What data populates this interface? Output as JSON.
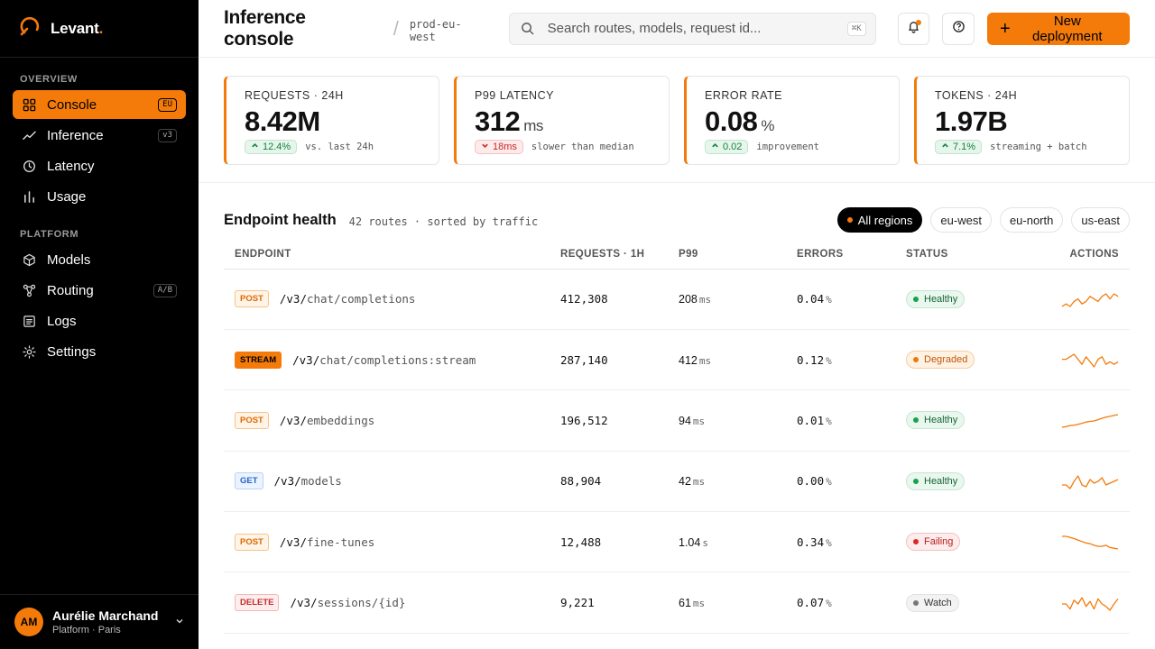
{
  "brand": {
    "name": "Levant",
    "dot": "."
  },
  "sidebar": {
    "sections": [
      {
        "title": "OVERVIEW"
      },
      {
        "title": "PLATFORM"
      }
    ],
    "overview": [
      {
        "label": "Console",
        "tag": "EU",
        "icon": "grid-icon",
        "active": true
      },
      {
        "label": "Inference",
        "tag": "v3",
        "icon": "trend-icon"
      },
      {
        "label": "Latency",
        "tag": "",
        "icon": "clock-icon"
      },
      {
        "label": "Usage",
        "tag": "",
        "icon": "bars-icon"
      }
    ],
    "platform": [
      {
        "label": "Models",
        "tag": "",
        "icon": "cube-icon"
      },
      {
        "label": "Routing",
        "tag": "A/B",
        "icon": "routing-icon"
      },
      {
        "label": "Logs",
        "tag": "",
        "icon": "logs-icon"
      },
      {
        "label": "Settings",
        "tag": "",
        "icon": "gear-icon"
      }
    ]
  },
  "user": {
    "initials": "AM",
    "name": "Aurélie Marchand",
    "role": "Platform · Paris"
  },
  "header": {
    "title": "Inference console",
    "separator": "/",
    "env": "prod-eu-west",
    "search_placeholder": "Search routes, models, request id...",
    "shortcut": "⌘K",
    "new_button": "New deployment"
  },
  "stats": [
    {
      "label": "REQUESTS · 24H",
      "value": "8.42M",
      "unit": "",
      "delta": "12.4%",
      "direction": "up",
      "tone": "good",
      "note": "vs. last 24h"
    },
    {
      "label": "P99 LATENCY",
      "value": "312",
      "unit": "ms",
      "delta": "18ms",
      "direction": "down",
      "tone": "bad",
      "note": "slower than median"
    },
    {
      "label": "ERROR RATE",
      "value": "0.08",
      "unit": "%",
      "delta": "0.02",
      "direction": "up",
      "tone": "good",
      "note": "improvement"
    },
    {
      "label": "TOKENS · 24H",
      "value": "1.97B",
      "unit": "",
      "delta": "7.1%",
      "direction": "up",
      "tone": "good",
      "note": "streaming + batch"
    }
  ],
  "endpoints": {
    "title": "Endpoint health",
    "subtitle": "42 routes · sorted by traffic",
    "filters": [
      "All regions",
      "eu-west",
      "eu-north",
      "us-east"
    ],
    "active_filter": 0,
    "columns": [
      "ENDPOINT",
      "REQUESTS · 1H",
      "P99",
      "ERRORS",
      "STATUS",
      "ACTIONS"
    ],
    "rows": [
      {
        "method": "POST",
        "base": "/v3/",
        "path": "chat/completions",
        "requests": "412,308",
        "p99": "208",
        "p99_unit": "ms",
        "errors": "0.04",
        "errors_unit": "%",
        "status": "Healthy",
        "spark": [
          5,
          6,
          5,
          7,
          8,
          6,
          7,
          9,
          8,
          7,
          9,
          10,
          8,
          10,
          9
        ]
      },
      {
        "method": "STREAM",
        "base": "/v3/",
        "path": "chat/completions:stream",
        "requests": "287,140",
        "p99": "412",
        "p99_unit": "ms",
        "errors": "0.12",
        "errors_unit": "%",
        "status": "Degraded",
        "spark": [
          6,
          6,
          7,
          8,
          6,
          4,
          7,
          5,
          3,
          6,
          7,
          4,
          5,
          4,
          5
        ]
      },
      {
        "method": "POST",
        "base": "/v3/",
        "path": "embeddings",
        "requests": "196,512",
        "p99": "94",
        "p99_unit": "ms",
        "errors": "0.01",
        "errors_unit": "%",
        "status": "Healthy",
        "spark": [
          2,
          2.3,
          2.8,
          3,
          3.4,
          3.9,
          4.5,
          4.8,
          5,
          5.6,
          6.3,
          6.8,
          7.2,
          7.6,
          8
        ]
      },
      {
        "method": "GET",
        "base": "/v3/",
        "path": "models",
        "requests": "88,904",
        "p99": "42",
        "p99_unit": "ms",
        "errors": "0.00",
        "errors_unit": "%",
        "status": "Healthy",
        "spark": [
          5,
          5,
          4.8,
          5.2,
          5.5,
          5,
          4.9,
          5.3,
          5.1,
          5.2,
          5.4,
          5,
          5.1,
          5.2,
          5.3
        ]
      },
      {
        "method": "POST",
        "base": "/v3/",
        "path": "fine-tunes",
        "requests": "12,488",
        "p99": "1.04",
        "p99_unit": "s",
        "errors": "0.34",
        "errors_unit": "%",
        "status": "Failing",
        "spark": [
          8,
          8,
          7.7,
          7.4,
          7,
          6.6,
          6.2,
          6,
          5.6,
          5.3,
          5.3,
          5.6,
          5,
          4.8,
          4.6
        ]
      },
      {
        "method": "DELETE",
        "base": "/v3/",
        "path": "sessions/{id}",
        "requests": "9,221",
        "p99": "61",
        "p99_unit": "ms",
        "errors": "0.07",
        "errors_unit": "%",
        "status": "Watch",
        "spark": [
          5,
          5,
          4.6,
          5.3,
          5,
          5.5,
          4.8,
          5.2,
          4.6,
          5.4,
          5,
          4.8,
          4.5,
          5,
          5.4
        ]
      }
    ]
  },
  "colors": {
    "accent": "#f47b0a",
    "sidebar_bg": "#000000",
    "healthy": "#16a34a",
    "degraded": "#ea7a0e",
    "failing": "#dc2626"
  }
}
